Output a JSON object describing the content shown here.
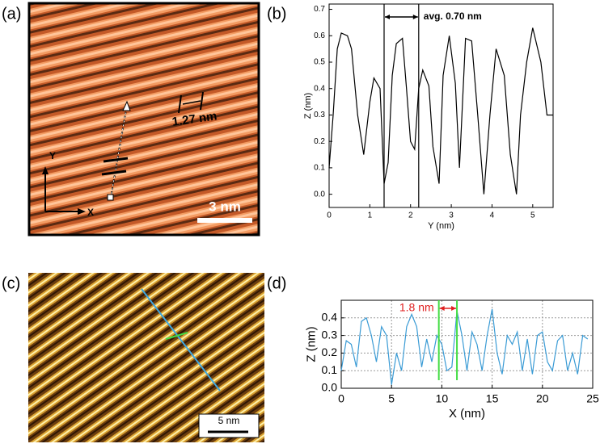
{
  "panels": [
    {
      "label": "(a)",
      "annotation": "1.27 nm",
      "scale_bar": "3 nm",
      "axes": [
        "Y",
        "X"
      ]
    },
    {
      "label": "(c)",
      "scale_bar": "5 nm"
    }
  ],
  "chart_data": [
    {
      "type": "line",
      "label": "(b)",
      "x_label": "Y (nm)",
      "y_label": "Z (nm)",
      "color": "#000000",
      "grid": false,
      "xlim": [
        0,
        5.5
      ],
      "ylim": [
        -0.05,
        0.72
      ],
      "xticks": [
        0,
        1,
        2,
        3,
        4,
        5
      ],
      "yticks": [
        {
          "value": 0,
          "label": "0.0"
        },
        0.1,
        0.2,
        0.3,
        0.4,
        0.5,
        0.6,
        0.7
      ],
      "annotation": {
        "text": "avg. 0.70 nm",
        "x": [
          1.35,
          2.2
        ],
        "color": "#000000",
        "line_color": "#000000"
      },
      "x": [
        0,
        0.1,
        0.2,
        0.3,
        0.45,
        0.55,
        0.7,
        0.85,
        1.0,
        1.1,
        1.25,
        1.35,
        1.45,
        1.55,
        1.65,
        1.8,
        1.9,
        2.0,
        2.1,
        2.2,
        2.3,
        2.45,
        2.55,
        2.7,
        2.8,
        2.95,
        3.1,
        3.2,
        3.35,
        3.5,
        3.65,
        3.8,
        3.95,
        4.1,
        4.3,
        4.45,
        4.6,
        4.7,
        4.85,
        5.0,
        5.2,
        5.35,
        5.5
      ],
      "values": [
        0.1,
        0.3,
        0.55,
        0.61,
        0.6,
        0.55,
        0.3,
        0.15,
        0.35,
        0.44,
        0.4,
        0.04,
        0.12,
        0.45,
        0.57,
        0.59,
        0.4,
        0.2,
        0.17,
        0.4,
        0.47,
        0.41,
        0.18,
        0.04,
        0.45,
        0.6,
        0.42,
        0.1,
        0.59,
        0.58,
        0.3,
        0.0,
        0.3,
        0.55,
        0.45,
        0.15,
        0.0,
        0.3,
        0.5,
        0.63,
        0.5,
        0.3,
        0.3
      ]
    },
    {
      "type": "line",
      "label": "(d)",
      "x_label": "X (nm)",
      "y_label": "Z (nm)",
      "color": "#3a9bd5",
      "grid": true,
      "xlim": [
        0,
        25
      ],
      "ylim": [
        0,
        0.5
      ],
      "xticks": [
        0,
        5,
        10,
        15,
        20,
        25
      ],
      "yticks": [
        {
          "value": 0,
          "label": "0.0"
        },
        0.1,
        0.2,
        0.3,
        0.4
      ],
      "annotation": {
        "text": "1.8 nm",
        "x": [
          9.7,
          11.5
        ],
        "color": "#e02020",
        "line_color": "#44dd44"
      },
      "x": [
        0,
        0.5,
        1,
        1.5,
        2,
        2.5,
        3,
        3.5,
        4,
        4.5,
        5,
        5.5,
        6,
        6.5,
        7,
        7.5,
        8,
        8.5,
        9,
        9.5,
        10,
        10.5,
        11,
        11.5,
        12,
        12.5,
        13,
        13.5,
        14,
        14.5,
        15,
        15.5,
        16,
        16.5,
        17,
        17.5,
        18,
        18.5,
        19,
        19.5,
        20,
        20.5,
        21,
        21.5,
        22,
        22.5,
        23,
        23.5,
        24,
        24.5
      ],
      "values": [
        0.1,
        0.27,
        0.25,
        0.12,
        0.38,
        0.4,
        0.3,
        0.15,
        0.35,
        0.3,
        0.02,
        0.2,
        0.1,
        0.35,
        0.42,
        0.35,
        0.12,
        0.28,
        0.15,
        0.3,
        0.25,
        0.1,
        0.12,
        0.44,
        0.3,
        0.1,
        0.32,
        0.25,
        0.1,
        0.3,
        0.45,
        0.2,
        0.08,
        0.3,
        0.25,
        0.32,
        0.1,
        0.28,
        0.08,
        0.3,
        0.32,
        0.15,
        0.1,
        0.27,
        0.3,
        0.1,
        0.2,
        0.08,
        0.3,
        0.28
      ]
    }
  ]
}
